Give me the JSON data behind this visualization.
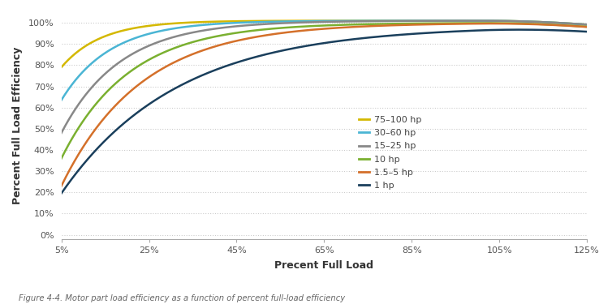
{
  "xlabel": "Precent Full Load",
  "ylabel": "Percent Full Load Efficiency",
  "caption": "Figure 4-4. Motor part load efficiency as a function of percent full-load efficiency",
  "x_ticks": [
    5,
    25,
    45,
    65,
    85,
    105,
    125
  ],
  "x_tick_labels": [
    "5%",
    "25%",
    "45%",
    "65%",
    "85%",
    "105%",
    "125%"
  ],
  "y_ticks": [
    0,
    10,
    20,
    30,
    40,
    50,
    60,
    70,
    80,
    90,
    100
  ],
  "y_tick_labels": [
    "0%",
    "10%",
    "20%",
    "30%",
    "40%",
    "50%",
    "60%",
    "70%",
    "80%",
    "90%",
    "100%"
  ],
  "xlim": [
    5,
    125
  ],
  "ylim": [
    -2,
    105
  ],
  "series": [
    {
      "label": "75–100 hp",
      "color": "#d4b800",
      "start_y": 79.0,
      "asymptote": 101.0,
      "rate": 0.11
    },
    {
      "label": "30–60 hp",
      "color": "#4ab5d4",
      "start_y": 63.5,
      "asymptote": 101.0,
      "rate": 0.09
    },
    {
      "label": "15–25 hp",
      "color": "#888888",
      "start_y": 48.0,
      "asymptote": 101.0,
      "rate": 0.075
    },
    {
      "label": "10 hp",
      "color": "#7ab030",
      "start_y": 36.0,
      "asymptote": 100.0,
      "rate": 0.065
    },
    {
      "label": "1.5–5 hp",
      "color": "#d4702a",
      "start_y": 23.0,
      "asymptote": 100.0,
      "rate": 0.055
    },
    {
      "label": "1 hp",
      "color": "#1a3f5c",
      "start_y": 19.5,
      "asymptote": 98.5,
      "rate": 0.038
    }
  ],
  "background_color": "#ffffff",
  "grid_color": "#cccccc",
  "figsize": [
    7.54,
    3.75
  ],
  "dpi": 100
}
